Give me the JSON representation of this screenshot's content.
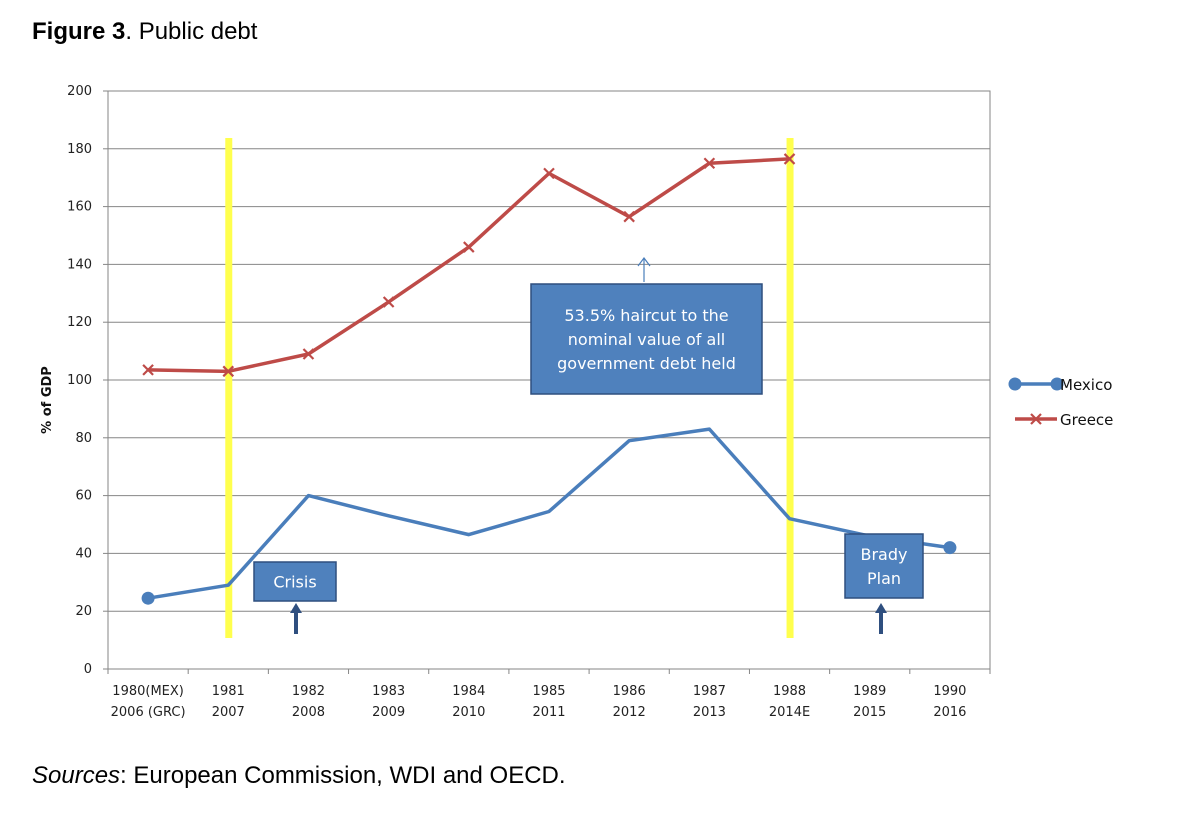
{
  "figure": {
    "title_bold": "Figure 3",
    "title_rest": ". Public debt",
    "sources_label": "Sources",
    "sources_rest": ": European Commission, WDI and OECD."
  },
  "colors": {
    "mexico": "#4a7ebb",
    "greece": "#be4b48",
    "highlight": "#ffff4d",
    "annotation_box": "#4f81bd",
    "annotation_border": "#2f4f7f",
    "grid": "#868686"
  },
  "chart_data": {
    "type": "line",
    "title": "",
    "xlabel": "",
    "ylabel": "% of GDP",
    "ylim": [
      0,
      200
    ],
    "yticks": [
      0,
      20,
      40,
      60,
      80,
      100,
      120,
      140,
      160,
      180,
      200
    ],
    "grid": true,
    "legend_position": "right",
    "categories": [
      [
        "1980(MEX)",
        "2006 (GRC)"
      ],
      [
        "1981",
        "2007"
      ],
      [
        "1982",
        "2008"
      ],
      [
        "1983",
        "2009"
      ],
      [
        "1984",
        "2010"
      ],
      [
        "1985",
        "2011"
      ],
      [
        "1986",
        "2012"
      ],
      [
        "1987",
        "2013"
      ],
      [
        "1988",
        "2014E"
      ],
      [
        "1989",
        "2015"
      ],
      [
        "1990",
        "2016"
      ]
    ],
    "series": [
      {
        "name": "Mexico",
        "values": [
          24.5,
          29,
          60,
          53,
          46.5,
          54.5,
          79,
          83,
          52,
          46,
          42
        ]
      },
      {
        "name": "Greece",
        "values": [
          103.5,
          103,
          109,
          127,
          146,
          171.5,
          156.5,
          175,
          176.5,
          null,
          null
        ]
      }
    ],
    "annotations": [
      {
        "text_lines": [
          "53.5% haircut to the",
          "nominal value of all",
          "government debt held"
        ],
        "points_to": [
          "1986",
          "2012"
        ]
      },
      {
        "text_lines": [
          "Crisis"
        ],
        "points_to": [
          "1982",
          "2008"
        ]
      },
      {
        "text_lines": [
          "Brady",
          "Plan"
        ],
        "points_to": [
          "1989",
          "2015"
        ]
      }
    ],
    "highlights": [
      [
        "1981",
        "2007"
      ],
      [
        "1988",
        "2014E"
      ]
    ]
  }
}
